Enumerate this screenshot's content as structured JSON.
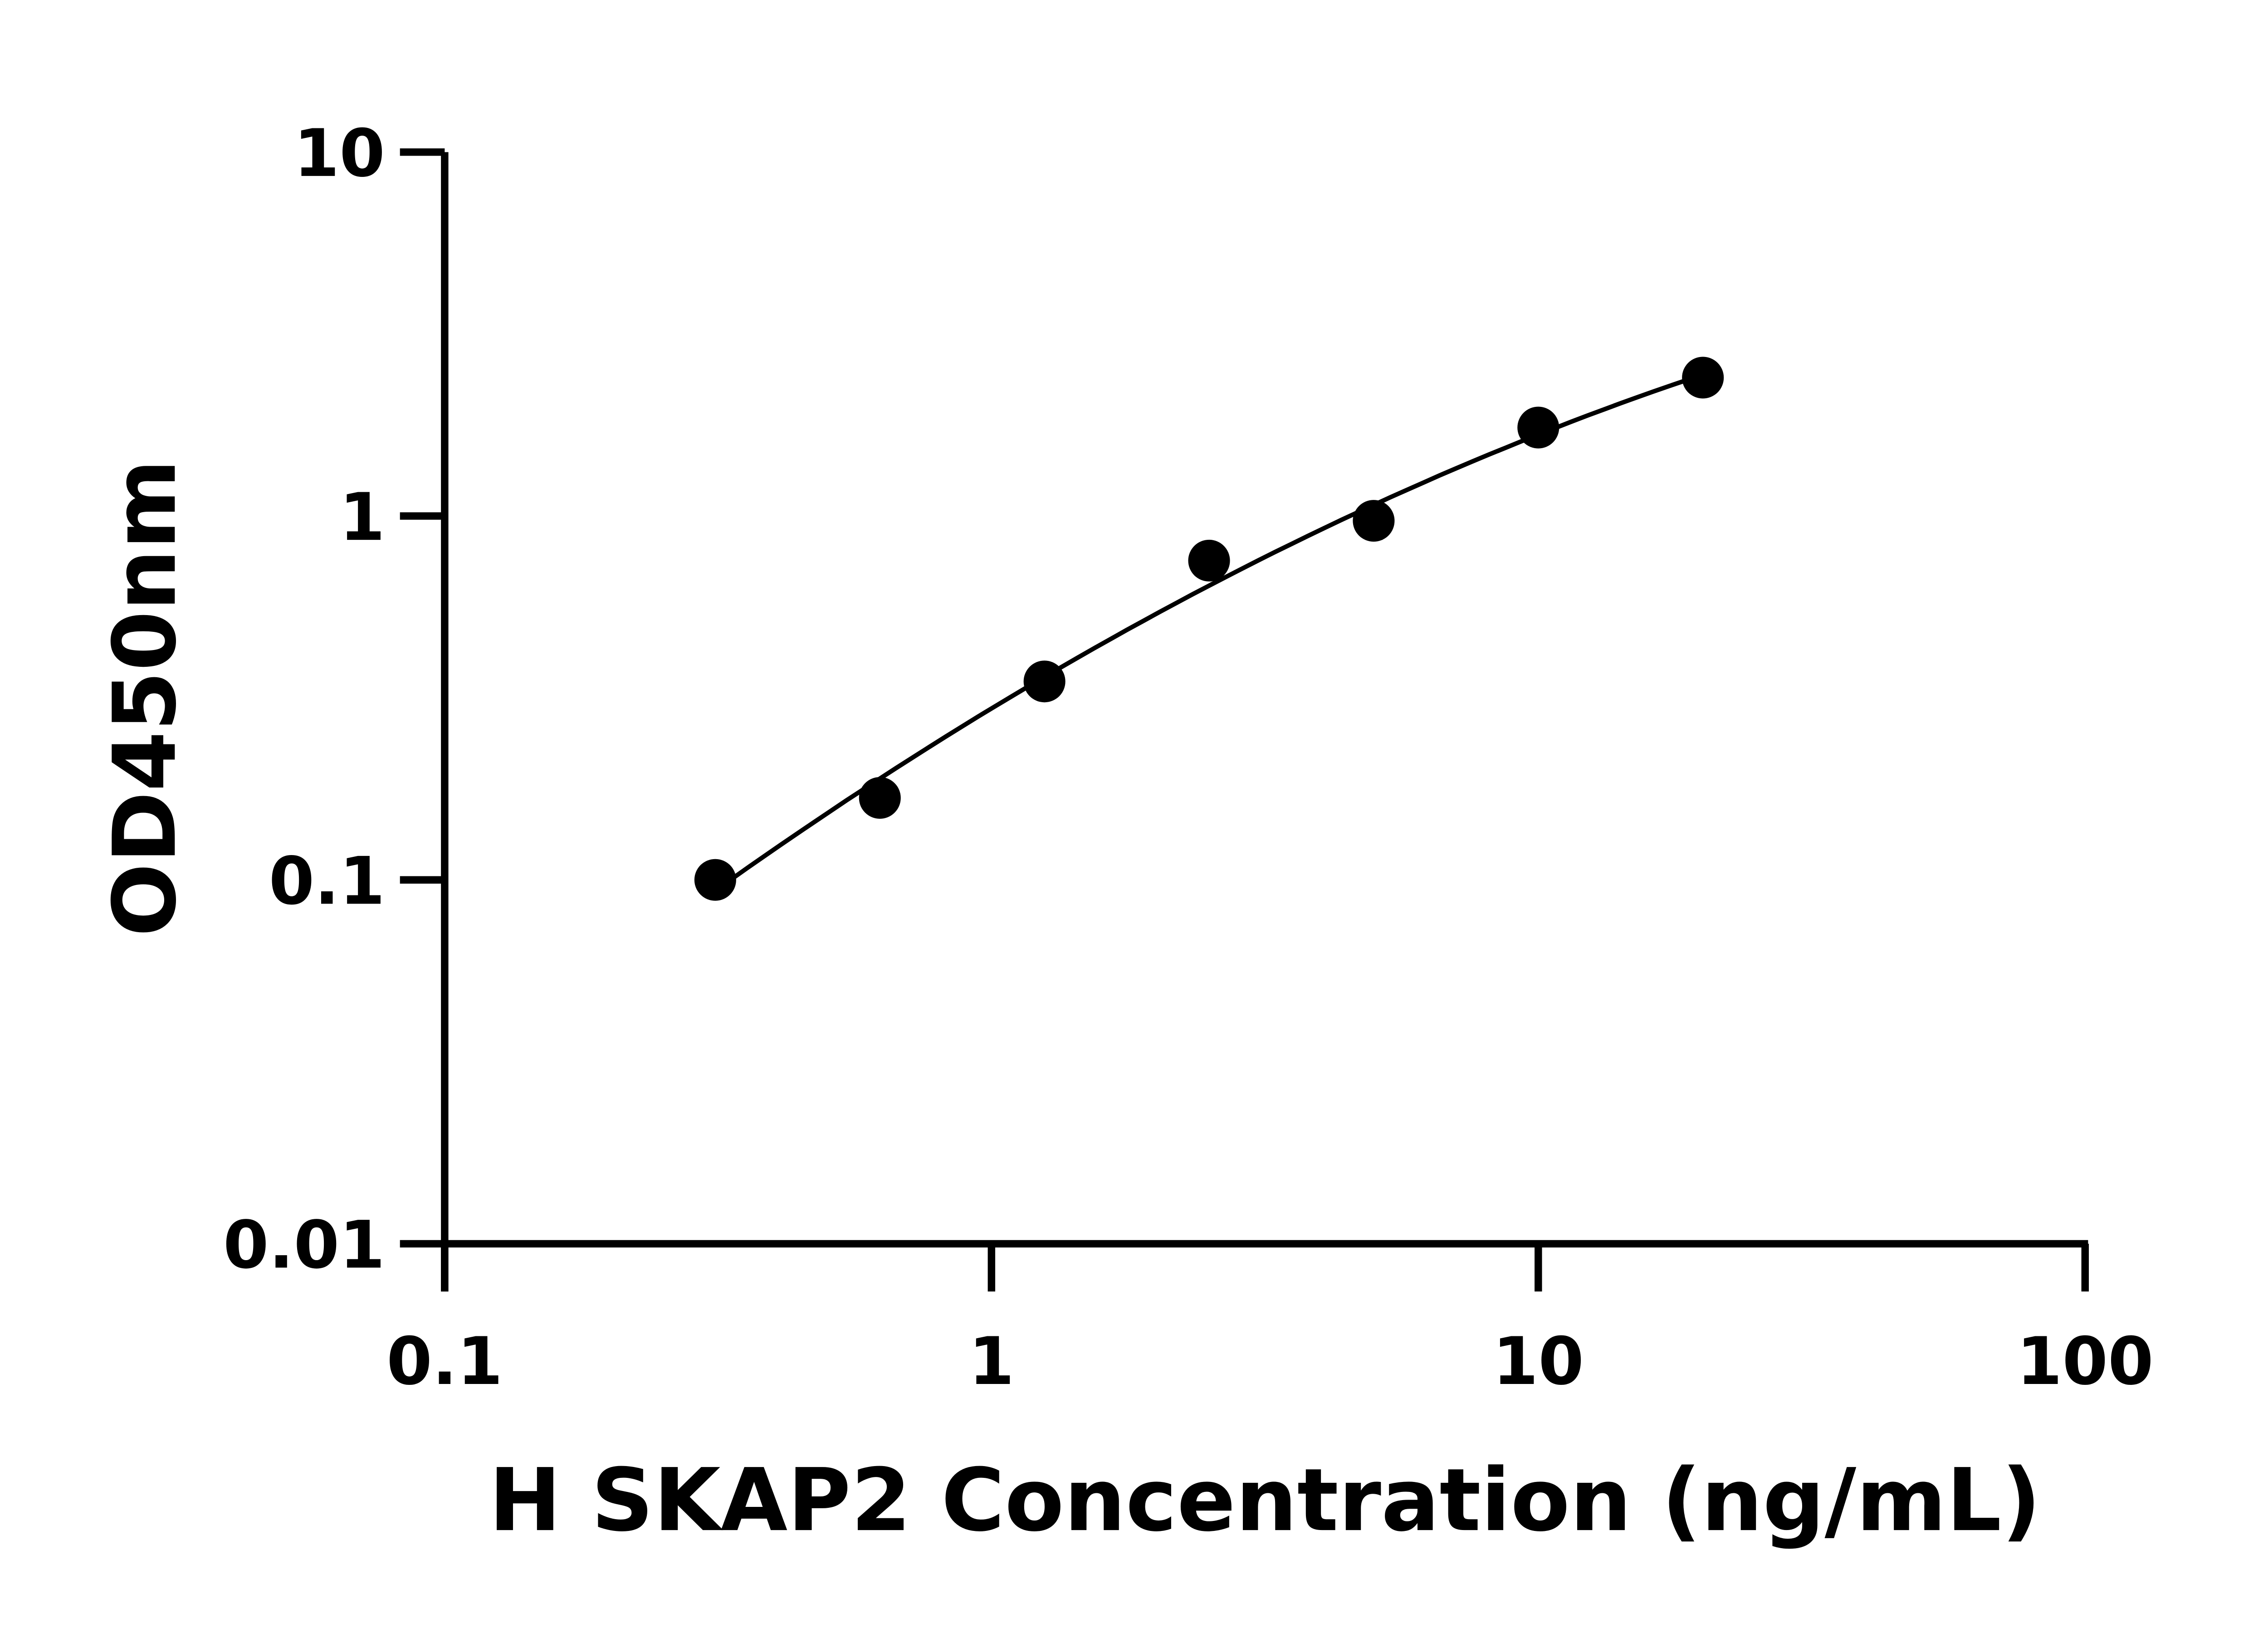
{
  "chart_data": {
    "type": "scatter",
    "title": "",
    "xlabel": "H SKAP2 Concentration (ng/mL)",
    "ylabel": "OD450nm",
    "xscale": "log",
    "yscale": "log",
    "xlim": [
      0.1,
      100
    ],
    "ylim": [
      0.01,
      10
    ],
    "xticks": [
      "0.1",
      "1",
      "10",
      "100"
    ],
    "yticks": [
      "0.01",
      "0.1",
      "1",
      "10"
    ],
    "grid": false,
    "legend": "none",
    "marker_color": "#000000",
    "fit_line": "smooth curve fit",
    "series": [
      {
        "x": [
          0.3125,
          0.625,
          1.25,
          2.5,
          5,
          10,
          20
        ],
        "y": [
          0.1,
          0.168,
          0.351,
          0.754,
          0.97,
          1.75,
          2.4
        ]
      }
    ]
  }
}
